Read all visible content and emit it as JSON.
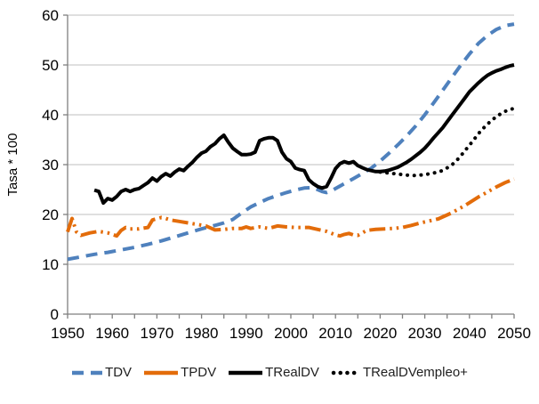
{
  "chart_data": {
    "type": "line",
    "title": "",
    "xlabel": "",
    "ylabel": "Tasa * 100",
    "xlim": [
      1950,
      2050
    ],
    "ylim": [
      0,
      60
    ],
    "xticks_labeled": [
      1950,
      1960,
      1970,
      1980,
      1990,
      2000,
      2010,
      2020,
      2030,
      2040,
      2050
    ],
    "xtick_minor_step": 5,
    "yticks": [
      0,
      10,
      20,
      30,
      40,
      50,
      60
    ],
    "grid": "horizontal",
    "legend_position": "bottom",
    "axis_color": "#7F7F7F",
    "grid_color": "#BFBFBF",
    "text_color": "#000000",
    "series": [
      {
        "name": "TDV",
        "color": "#4F81BD",
        "line_style": "dashed",
        "points": [
          [
            1950,
            11.0
          ],
          [
            1953,
            11.5
          ],
          [
            1956,
            12.0
          ],
          [
            1959,
            12.4
          ],
          [
            1962,
            12.9
          ],
          [
            1965,
            13.4
          ],
          [
            1968,
            14.0
          ],
          [
            1971,
            14.7
          ],
          [
            1974,
            15.5
          ],
          [
            1977,
            16.3
          ],
          [
            1980,
            17.1
          ],
          [
            1983,
            17.8
          ],
          [
            1985,
            18.3
          ],
          [
            1987,
            19.0
          ],
          [
            1989,
            20.3
          ],
          [
            1991,
            21.5
          ],
          [
            1993,
            22.4
          ],
          [
            1995,
            23.2
          ],
          [
            1997,
            23.8
          ],
          [
            1999,
            24.4
          ],
          [
            2001,
            24.9
          ],
          [
            2003,
            25.3
          ],
          [
            2005,
            25.4
          ],
          [
            2006,
            25.0
          ],
          [
            2007,
            24.6
          ],
          [
            2008,
            24.4
          ],
          [
            2009,
            24.7
          ],
          [
            2010,
            25.2
          ],
          [
            2012,
            26.2
          ],
          [
            2014,
            27.2
          ],
          [
            2016,
            28.2
          ],
          [
            2018,
            29.3
          ],
          [
            2020,
            30.7
          ],
          [
            2022,
            32.3
          ],
          [
            2024,
            34.0
          ],
          [
            2026,
            35.8
          ],
          [
            2028,
            37.8
          ],
          [
            2030,
            40.0
          ],
          [
            2032,
            42.4
          ],
          [
            2034,
            44.9
          ],
          [
            2036,
            47.4
          ],
          [
            2038,
            49.9
          ],
          [
            2040,
            52.2
          ],
          [
            2042,
            54.3
          ],
          [
            2044,
            55.9
          ],
          [
            2046,
            57.1
          ],
          [
            2048,
            57.9
          ],
          [
            2050,
            58.2
          ]
        ]
      },
      {
        "name": "TPDV",
        "color": "#E36C0A",
        "line_style": "dash-dot-dot",
        "points": [
          [
            1950,
            16.5
          ],
          [
            1951,
            19.2
          ],
          [
            1952,
            16.5
          ],
          [
            1953,
            15.8
          ],
          [
            1955,
            16.3
          ],
          [
            1957,
            16.6
          ],
          [
            1959,
            16.3
          ],
          [
            1961,
            15.7
          ],
          [
            1962,
            16.8
          ],
          [
            1963,
            17.4
          ],
          [
            1964,
            17.1
          ],
          [
            1966,
            17.1
          ],
          [
            1968,
            17.4
          ],
          [
            1969,
            18.9
          ],
          [
            1971,
            19.4
          ],
          [
            1972,
            19.2
          ],
          [
            1973,
            18.9
          ],
          [
            1975,
            18.6
          ],
          [
            1977,
            18.3
          ],
          [
            1979,
            18.0
          ],
          [
            1981,
            17.7
          ],
          [
            1983,
            16.9
          ],
          [
            1985,
            17.0
          ],
          [
            1987,
            17.2
          ],
          [
            1989,
            17.2
          ],
          [
            1990,
            17.5
          ],
          [
            1991,
            17.2
          ],
          [
            1993,
            17.5
          ],
          [
            1995,
            17.2
          ],
          [
            1997,
            17.7
          ],
          [
            1999,
            17.5
          ],
          [
            2001,
            17.4
          ],
          [
            2004,
            17.4
          ],
          [
            2006,
            17.0
          ],
          [
            2008,
            16.6
          ],
          [
            2010,
            15.9
          ],
          [
            2011,
            15.7
          ],
          [
            2012,
            16.0
          ],
          [
            2013,
            16.2
          ],
          [
            2014,
            15.9
          ],
          [
            2015,
            15.8
          ],
          [
            2017,
            16.8
          ],
          [
            2019,
            17.0
          ],
          [
            2021,
            17.1
          ],
          [
            2023,
            17.2
          ],
          [
            2025,
            17.4
          ],
          [
            2027,
            17.8
          ],
          [
            2029,
            18.3
          ],
          [
            2031,
            18.7
          ],
          [
            2033,
            19.1
          ],
          [
            2036,
            20.3
          ],
          [
            2039,
            21.8
          ],
          [
            2042,
            23.5
          ],
          [
            2044,
            24.5
          ],
          [
            2046,
            25.5
          ],
          [
            2048,
            26.4
          ],
          [
            2050,
            27.1
          ]
        ]
      },
      {
        "name": "TRealDV",
        "color": "#000000",
        "line_style": "solid",
        "points": [
          [
            1956,
            24.9
          ],
          [
            1957,
            24.6
          ],
          [
            1958,
            22.3
          ],
          [
            1959,
            23.2
          ],
          [
            1960,
            22.9
          ],
          [
            1961,
            23.6
          ],
          [
            1962,
            24.6
          ],
          [
            1963,
            25.0
          ],
          [
            1964,
            24.6
          ],
          [
            1965,
            25.0
          ],
          [
            1966,
            25.2
          ],
          [
            1967,
            25.8
          ],
          [
            1968,
            26.4
          ],
          [
            1969,
            27.3
          ],
          [
            1970,
            26.7
          ],
          [
            1971,
            27.6
          ],
          [
            1972,
            28.2
          ],
          [
            1973,
            27.7
          ],
          [
            1974,
            28.5
          ],
          [
            1975,
            29.1
          ],
          [
            1976,
            28.8
          ],
          [
            1977,
            29.7
          ],
          [
            1978,
            30.5
          ],
          [
            1979,
            31.5
          ],
          [
            1980,
            32.3
          ],
          [
            1981,
            32.7
          ],
          [
            1982,
            33.6
          ],
          [
            1983,
            34.2
          ],
          [
            1984,
            35.2
          ],
          [
            1985,
            35.9
          ],
          [
            1986,
            34.5
          ],
          [
            1987,
            33.3
          ],
          [
            1988,
            32.6
          ],
          [
            1989,
            32.0
          ],
          [
            1990,
            32.0
          ],
          [
            1991,
            32.1
          ],
          [
            1992,
            32.5
          ],
          [
            1993,
            34.8
          ],
          [
            1994,
            35.2
          ],
          [
            1995,
            35.4
          ],
          [
            1996,
            35.4
          ],
          [
            1997,
            34.8
          ],
          [
            1998,
            32.5
          ],
          [
            1999,
            31.2
          ],
          [
            2000,
            30.6
          ],
          [
            2001,
            29.3
          ],
          [
            2002,
            29.0
          ],
          [
            2003,
            28.8
          ],
          [
            2004,
            27.0
          ],
          [
            2005,
            26.2
          ],
          [
            2006,
            25.6
          ],
          [
            2007,
            25.3
          ],
          [
            2008,
            25.6
          ],
          [
            2009,
            27.3
          ],
          [
            2010,
            29.2
          ],
          [
            2011,
            30.2
          ],
          [
            2012,
            30.6
          ],
          [
            2013,
            30.3
          ],
          [
            2014,
            30.6
          ],
          [
            2015,
            29.8
          ],
          [
            2016,
            29.4
          ],
          [
            2017,
            29.0
          ],
          [
            2018,
            28.8
          ],
          [
            2019,
            28.6
          ],
          [
            2020,
            28.6
          ],
          [
            2021,
            28.7
          ],
          [
            2022,
            28.9
          ],
          [
            2023,
            29.2
          ],
          [
            2024,
            29.5
          ],
          [
            2025,
            30.0
          ],
          [
            2026,
            30.5
          ],
          [
            2027,
            31.1
          ],
          [
            2028,
            31.8
          ],
          [
            2029,
            32.5
          ],
          [
            2030,
            33.3
          ],
          [
            2031,
            34.3
          ],
          [
            2032,
            35.4
          ],
          [
            2033,
            36.4
          ],
          [
            2034,
            37.4
          ],
          [
            2035,
            38.6
          ],
          [
            2036,
            39.8
          ],
          [
            2037,
            41.0
          ],
          [
            2038,
            42.2
          ],
          [
            2039,
            43.4
          ],
          [
            2040,
            44.6
          ],
          [
            2041,
            45.5
          ],
          [
            2042,
            46.4
          ],
          [
            2043,
            47.2
          ],
          [
            2044,
            47.9
          ],
          [
            2045,
            48.4
          ],
          [
            2046,
            48.8
          ],
          [
            2047,
            49.1
          ],
          [
            2048,
            49.5
          ],
          [
            2049,
            49.8
          ],
          [
            2050,
            50.0
          ]
        ]
      },
      {
        "name": "TRealDVempleo+",
        "color": "#000000",
        "line_style": "dotted",
        "points": [
          [
            2020,
            28.5
          ],
          [
            2022,
            28.3
          ],
          [
            2024,
            28.1
          ],
          [
            2026,
            27.9
          ],
          [
            2028,
            27.8
          ],
          [
            2030,
            28.0
          ],
          [
            2032,
            28.3
          ],
          [
            2034,
            28.8
          ],
          [
            2036,
            29.9
          ],
          [
            2037,
            30.7
          ],
          [
            2038,
            31.7
          ],
          [
            2039,
            32.8
          ],
          [
            2040,
            33.9
          ],
          [
            2041,
            35.0
          ],
          [
            2042,
            36.2
          ],
          [
            2043,
            37.2
          ],
          [
            2044,
            38.1
          ],
          [
            2045,
            38.9
          ],
          [
            2046,
            39.6
          ],
          [
            2047,
            40.2
          ],
          [
            2048,
            40.7
          ],
          [
            2049,
            41.0
          ],
          [
            2050,
            41.3
          ]
        ]
      }
    ]
  }
}
